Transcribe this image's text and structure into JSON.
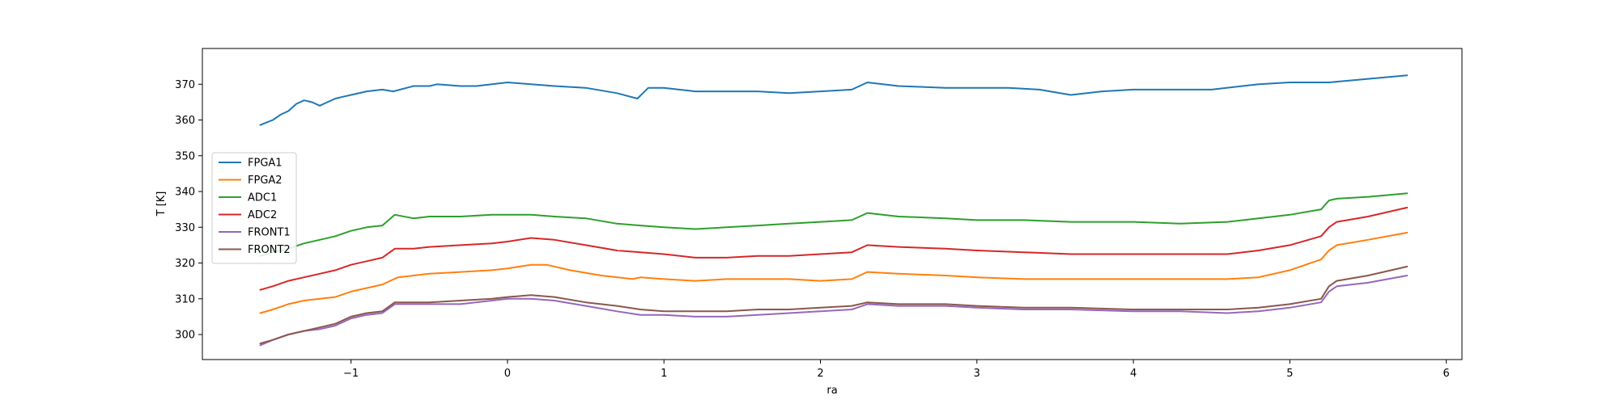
{
  "chart_data": {
    "type": "line",
    "title": "",
    "xlabel": "ra",
    "ylabel": "T [K]",
    "xlim": [
      -1.95,
      6.1
    ],
    "ylim": [
      293,
      380
    ],
    "x_ticks": [
      -1,
      0,
      1,
      2,
      3,
      4,
      5,
      6
    ],
    "x_tick_labels": [
      "−1",
      "0",
      "1",
      "2",
      "3",
      "4",
      "5",
      "6"
    ],
    "y_ticks": [
      300,
      310,
      320,
      330,
      340,
      350,
      360,
      370
    ],
    "y_tick_labels": [
      "300",
      "310",
      "320",
      "330",
      "340",
      "350",
      "360",
      "370"
    ],
    "grid": false,
    "legend_position": "center-left",
    "series": [
      {
        "name": "FPGA1",
        "color": "#1f77b4",
        "x": [
          -1.58,
          -1.5,
          -1.45,
          -1.4,
          -1.35,
          -1.3,
          -1.25,
          -1.2,
          -1.15,
          -1.1,
          -1.05,
          -1.0,
          -0.9,
          -0.8,
          -0.73,
          -0.6,
          -0.5,
          -0.45,
          -0.3,
          -0.2,
          -0.1,
          0.0,
          0.15,
          0.3,
          0.5,
          0.7,
          0.83,
          0.9,
          1.0,
          1.2,
          1.4,
          1.6,
          1.8,
          2.0,
          2.2,
          2.3,
          2.5,
          2.8,
          3.0,
          3.2,
          3.4,
          3.6,
          3.8,
          4.0,
          4.3,
          4.5,
          4.8,
          5.0,
          5.25,
          5.5,
          5.75
        ],
        "y": [
          358.6,
          360,
          361.5,
          362.5,
          364.5,
          365.5,
          365,
          364,
          365,
          366,
          366.5,
          367,
          368,
          368.5,
          368,
          369.5,
          369.5,
          370,
          369.5,
          369.5,
          370,
          370.5,
          370,
          369.5,
          369,
          367.5,
          366,
          369,
          369,
          368,
          368,
          368,
          367.5,
          368,
          368.5,
          370.5,
          369.5,
          369,
          369,
          369,
          368.5,
          367,
          368,
          368.5,
          368.5,
          368.5,
          370,
          370.5,
          370.5,
          371.5,
          372.5
        ]
      },
      {
        "name": "FPGA2",
        "color": "#ff7f0e",
        "x": [
          -1.58,
          -1.5,
          -1.4,
          -1.3,
          -1.2,
          -1.1,
          -1.0,
          -0.9,
          -0.8,
          -0.7,
          -0.6,
          -0.5,
          -0.3,
          -0.1,
          0.0,
          0.15,
          0.25,
          0.4,
          0.6,
          0.8,
          0.85,
          1.0,
          1.2,
          1.4,
          1.6,
          1.8,
          2.0,
          2.2,
          2.3,
          2.5,
          2.8,
          3.0,
          3.3,
          3.6,
          4.0,
          4.3,
          4.6,
          4.8,
          5.0,
          5.2,
          5.25,
          5.3,
          5.5,
          5.75
        ],
        "y": [
          306,
          307,
          308.5,
          309.5,
          310,
          310.5,
          312,
          313,
          314,
          316,
          316.5,
          317,
          317.5,
          318,
          318.5,
          319.5,
          319.5,
          318,
          316.5,
          315.5,
          316,
          315.5,
          315,
          315.5,
          315.5,
          315.5,
          315,
          315.5,
          317.5,
          317,
          316.5,
          316,
          315.5,
          315.5,
          315.5,
          315.5,
          315.5,
          316,
          318,
          321,
          323.5,
          325,
          326.5,
          328.5
        ]
      },
      {
        "name": "ADC1",
        "color": "#2ca02c",
        "x": [
          -1.58,
          -1.5,
          -1.4,
          -1.3,
          -1.2,
          -1.1,
          -1.0,
          -0.9,
          -0.8,
          -0.72,
          -0.6,
          -0.5,
          -0.3,
          -0.1,
          0.0,
          0.15,
          0.3,
          0.5,
          0.7,
          0.85,
          1.0,
          1.2,
          1.4,
          1.6,
          1.8,
          2.0,
          2.2,
          2.3,
          2.5,
          2.8,
          3.0,
          3.3,
          3.6,
          4.0,
          4.3,
          4.6,
          4.8,
          5.0,
          5.2,
          5.25,
          5.3,
          5.5,
          5.75
        ],
        "y": [
          322,
          323,
          324,
          325.5,
          326.5,
          327.5,
          329,
          330,
          330.5,
          333.5,
          332.5,
          333,
          333,
          333.5,
          333.5,
          333.5,
          333,
          332.5,
          331,
          330.5,
          330,
          329.5,
          330,
          330.5,
          331,
          331.5,
          332,
          334,
          333,
          332.5,
          332,
          332,
          331.5,
          331.5,
          331,
          331.5,
          332.5,
          333.5,
          335,
          337.5,
          338,
          338.5,
          339.5
        ]
      },
      {
        "name": "ADC2",
        "color": "#d62728",
        "x": [
          -1.58,
          -1.5,
          -1.4,
          -1.3,
          -1.2,
          -1.1,
          -1.0,
          -0.9,
          -0.8,
          -0.72,
          -0.6,
          -0.5,
          -0.3,
          -0.1,
          0.0,
          0.15,
          0.3,
          0.5,
          0.7,
          0.85,
          1.0,
          1.2,
          1.4,
          1.6,
          1.8,
          2.0,
          2.2,
          2.3,
          2.5,
          2.8,
          3.0,
          3.3,
          3.6,
          4.0,
          4.3,
          4.6,
          4.8,
          5.0,
          5.2,
          5.25,
          5.3,
          5.5,
          5.75
        ],
        "y": [
          312.5,
          313.5,
          315,
          316,
          317,
          318,
          319.5,
          320.5,
          321.5,
          324,
          324,
          324.5,
          325,
          325.5,
          326,
          327,
          326.5,
          325,
          323.5,
          323,
          322.5,
          321.5,
          321.5,
          322,
          322,
          322.5,
          323,
          325,
          324.5,
          324,
          323.5,
          323,
          322.5,
          322.5,
          322.5,
          322.5,
          323.5,
          325,
          327.5,
          330,
          331.5,
          333,
          335.5
        ]
      },
      {
        "name": "FRONT1",
        "color": "#9467bd",
        "x": [
          -1.58,
          -1.5,
          -1.4,
          -1.3,
          -1.2,
          -1.1,
          -1.0,
          -0.9,
          -0.8,
          -0.72,
          -0.6,
          -0.5,
          -0.3,
          -0.1,
          0.0,
          0.15,
          0.3,
          0.5,
          0.7,
          0.85,
          1.0,
          1.2,
          1.4,
          1.6,
          1.8,
          2.0,
          2.2,
          2.3,
          2.5,
          2.8,
          3.0,
          3.3,
          3.6,
          4.0,
          4.3,
          4.6,
          4.8,
          5.0,
          5.2,
          5.25,
          5.3,
          5.5,
          5.75
        ],
        "y": [
          297,
          298.5,
          300,
          301,
          301.5,
          302.5,
          304.5,
          305.5,
          306,
          308.5,
          308.5,
          308.5,
          308.5,
          309.5,
          310,
          310,
          309.5,
          308,
          306.5,
          305.5,
          305.5,
          305,
          305,
          305.5,
          306,
          306.5,
          307,
          308.5,
          308,
          308,
          307.5,
          307,
          307,
          306.5,
          306.5,
          306,
          306.5,
          307.5,
          309,
          312,
          313.5,
          314.5,
          316.5
        ]
      },
      {
        "name": "FRONT2",
        "color": "#8c564b",
        "x": [
          -1.58,
          -1.5,
          -1.4,
          -1.3,
          -1.2,
          -1.1,
          -1.0,
          -0.9,
          -0.8,
          -0.72,
          -0.6,
          -0.5,
          -0.3,
          -0.1,
          0.0,
          0.15,
          0.3,
          0.5,
          0.7,
          0.85,
          1.0,
          1.2,
          1.4,
          1.6,
          1.8,
          2.0,
          2.2,
          2.3,
          2.5,
          2.8,
          3.0,
          3.3,
          3.6,
          4.0,
          4.3,
          4.6,
          4.8,
          5.0,
          5.2,
          5.25,
          5.3,
          5.5,
          5.75
        ],
        "y": [
          297.5,
          298.5,
          300,
          301,
          302,
          303,
          305,
          306,
          306.5,
          309,
          309,
          309,
          309.5,
          310,
          310.5,
          311,
          310.5,
          309,
          308,
          307,
          306.5,
          306.5,
          306.5,
          307,
          307,
          307.5,
          308,
          309,
          308.5,
          308.5,
          308,
          307.5,
          307.5,
          307,
          307,
          307,
          307.5,
          308.5,
          310,
          313.5,
          315,
          316.5,
          319
        ]
      }
    ]
  }
}
